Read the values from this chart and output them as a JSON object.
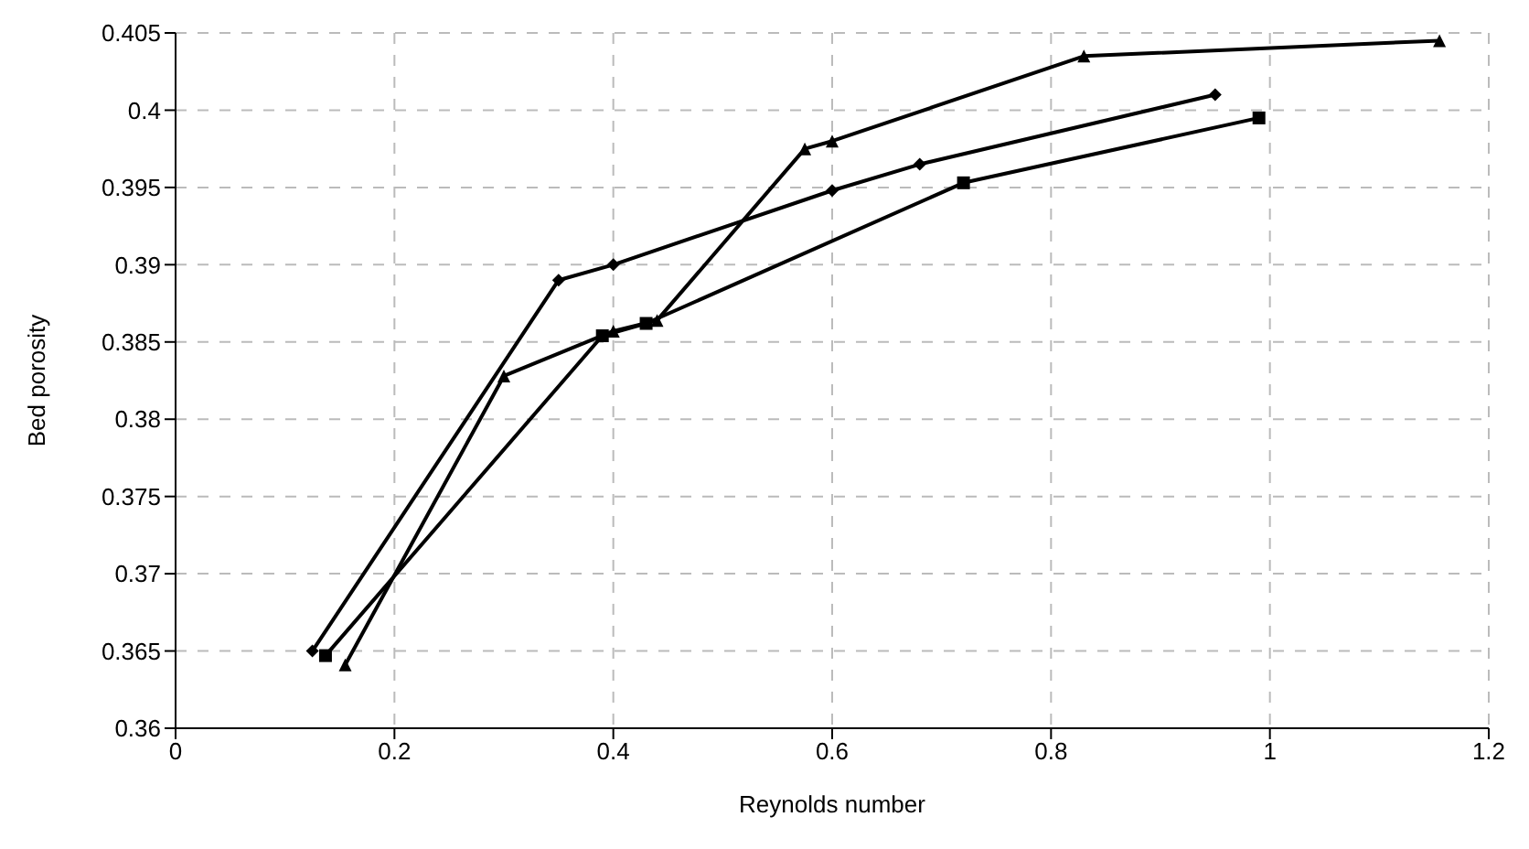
{
  "chart_data": {
    "type": "line",
    "xlabel": "Reynolds number",
    "ylabel": "Bed porosity",
    "series": [
      {
        "color": "#000000",
        "marker": "diamond",
        "x": [
          0.125,
          0.35,
          0.4,
          0.6,
          0.68,
          0.95
        ],
        "values": [
          0.365,
          0.389,
          0.39,
          0.3948,
          0.3965,
          0.401
        ]
      },
      {
        "color": "#000000",
        "marker": "square",
        "x": [
          0.137,
          0.39,
          0.43,
          0.72,
          0.99
        ],
        "values": [
          0.3647,
          0.3854,
          0.3862,
          0.3953,
          0.3995
        ]
      },
      {
        "color": "#000000",
        "marker": "triangle",
        "x": [
          0.155,
          0.3,
          0.4,
          0.44,
          0.575,
          0.6,
          0.83,
          1.155
        ],
        "values": [
          0.3641,
          0.3828,
          0.3857,
          0.3864,
          0.3975,
          0.398,
          0.4035,
          0.4045
        ]
      }
    ],
    "xlim": [
      0,
      1.2
    ],
    "xticks": [
      0,
      0.2,
      0.4,
      0.6,
      0.8,
      1,
      1.2
    ],
    "ylim": [
      0.36,
      0.405
    ],
    "yticks": [
      0.36,
      0.365,
      0.37,
      0.375,
      0.38,
      0.385,
      0.39,
      0.395,
      0.4,
      0.405
    ],
    "grid": true
  }
}
